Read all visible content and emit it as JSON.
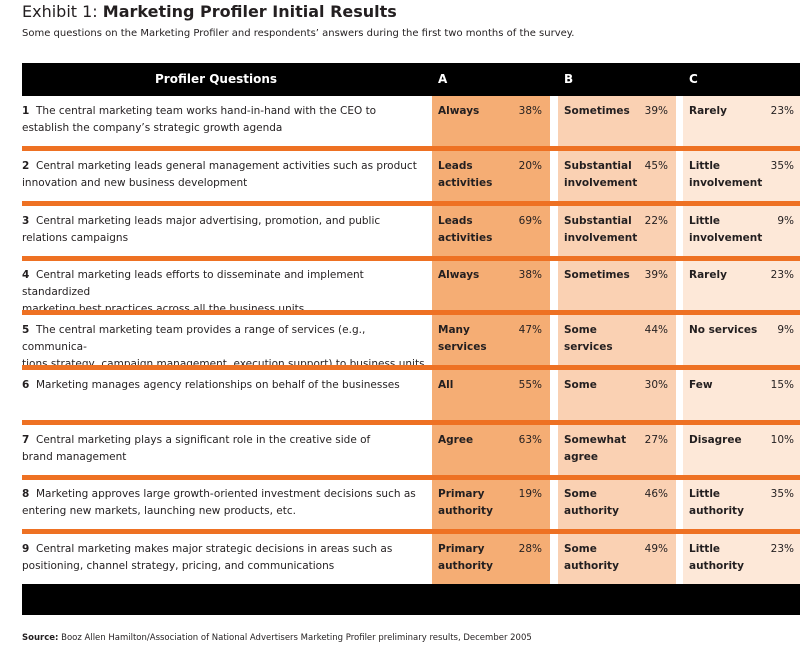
{
  "title": {
    "prefix": "Exhibit 1: ",
    "main": "Marketing Profiler Initial Results"
  },
  "subtitle": "Some questions on the Marketing Profiler and respondents’ answers during the first two months of the survey.",
  "table": {
    "headers": {
      "questions": "Profiler Questions",
      "a": "A",
      "b": "B",
      "c": "C"
    },
    "rows": [
      {
        "num": "1",
        "question": "The central marketing team works hand-in-hand with the CEO to\nestablish the company’s strategic growth agenda",
        "a": {
          "label": "Always",
          "pct": "38%"
        },
        "b": {
          "label": "Sometimes",
          "pct": "39%"
        },
        "c": {
          "label": "Rarely",
          "pct": "23%"
        }
      },
      {
        "num": "2",
        "question": "Central marketing leads general management activities such as product\ninnovation and new business development",
        "a": {
          "label": "Leads\nactivities",
          "pct": "20%"
        },
        "b": {
          "label": "Substantial\ninvolvement",
          "pct": "45%"
        },
        "c": {
          "label": "Little\ninvolvement",
          "pct": "35%"
        }
      },
      {
        "num": "3",
        "question": "Central marketing leads major advertising, promotion, and public\nrelations campaigns",
        "a": {
          "label": "Leads\nactivities",
          "pct": "69%"
        },
        "b": {
          "label": "Substantial\ninvolvement",
          "pct": "22%"
        },
        "c": {
          "label": "Little\ninvolvement",
          "pct": "9%"
        }
      },
      {
        "num": "4",
        "question": "Central marketing leads efforts to disseminate and implement standardized\nmarketing best practices across all the business units",
        "a": {
          "label": "Always",
          "pct": "38%"
        },
        "b": {
          "label": "Sometimes",
          "pct": "39%"
        },
        "c": {
          "label": "Rarely",
          "pct": "23%"
        }
      },
      {
        "num": "5",
        "question": "The central marketing team provides a range of services (e.g., communica-\ntions strategy, campaign management, execution support) to business units",
        "a": {
          "label": "Many\nservices",
          "pct": "47%"
        },
        "b": {
          "label": "Some\nservices",
          "pct": "44%"
        },
        "c": {
          "label": "No services",
          "pct": "9%"
        }
      },
      {
        "num": "6",
        "question": "Marketing manages agency relationships on behalf of the businesses",
        "a": {
          "label": "All",
          "pct": "55%"
        },
        "b": {
          "label": "Some",
          "pct": "30%"
        },
        "c": {
          "label": "Few",
          "pct": "15%"
        }
      },
      {
        "num": "7",
        "question": "Central marketing plays a significant role in the creative side of\nbrand management",
        "a": {
          "label": "Agree",
          "pct": "63%"
        },
        "b": {
          "label": "Somewhat\nagree",
          "pct": "27%"
        },
        "c": {
          "label": "Disagree",
          "pct": "10%"
        }
      },
      {
        "num": "8",
        "question": "Marketing approves large growth-oriented investment decisions such as\nentering new markets, launching new products, etc.",
        "a": {
          "label": "Primary\nauthority",
          "pct": "19%"
        },
        "b": {
          "label": "Some\nauthority",
          "pct": "46%"
        },
        "c": {
          "label": "Little\nauthority",
          "pct": "35%"
        }
      },
      {
        "num": "9",
        "question": "Central marketing makes major strategic decisions in areas such as\npositioning, channel strategy, pricing, and communications",
        "a": {
          "label": "Primary\nauthority",
          "pct": "28%"
        },
        "b": {
          "label": "Some\nauthority",
          "pct": "49%"
        },
        "c": {
          "label": "Little\nauthority",
          "pct": "23%"
        }
      }
    ]
  },
  "source": {
    "label": "Source:",
    "text": " Booz Allen Hamilton/Association of National Advertisers Marketing Profiler preliminary results, December 2005"
  },
  "colors": {
    "header": "#000000",
    "col_a": "#f5ad74",
    "col_b": "#fad1b3",
    "col_c": "#fde8d8",
    "separator": "#ee7123"
  }
}
